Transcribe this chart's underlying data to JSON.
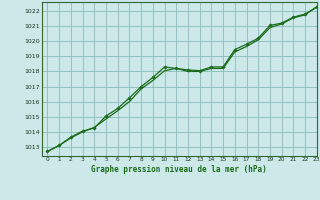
{
  "title": "Graphe pression niveau de la mer (hPa)",
  "bg_color": "#cce8e8",
  "grid_color": "#88bbbb",
  "line_color": "#1a6b1a",
  "marker_color": "#1a6b1a",
  "spine_color": "#336633",
  "xlim": [
    -0.5,
    23
  ],
  "ylim": [
    1012.4,
    1022.6
  ],
  "xticks": [
    0,
    1,
    2,
    3,
    4,
    5,
    6,
    7,
    8,
    9,
    10,
    11,
    12,
    13,
    14,
    15,
    16,
    17,
    18,
    19,
    20,
    21,
    22,
    23
  ],
  "yticks": [
    1013,
    1014,
    1015,
    1016,
    1017,
    1018,
    1019,
    1020,
    1021,
    1022
  ],
  "series1_x": [
    0,
    1,
    2,
    3,
    4,
    5,
    6,
    7,
    8,
    9,
    10,
    11,
    12,
    13,
    14,
    15,
    16,
    17,
    18,
    19,
    20,
    21,
    22,
    23
  ],
  "series1_y": [
    1012.7,
    1013.1,
    1013.6,
    1014.0,
    1014.3,
    1014.85,
    1015.4,
    1016.0,
    1016.85,
    1017.4,
    1018.05,
    1018.2,
    1018.0,
    1018.0,
    1018.2,
    1018.2,
    1019.3,
    1019.65,
    1020.1,
    1020.9,
    1021.15,
    1021.55,
    1021.75,
    1022.3
  ],
  "series2_x": [
    0,
    1,
    2,
    3,
    4,
    5,
    6,
    7,
    8,
    9,
    10,
    11,
    12,
    13,
    14,
    15,
    16,
    17,
    18,
    19,
    20,
    21,
    22,
    23
  ],
  "series2_y": [
    1012.7,
    1013.1,
    1013.65,
    1014.05,
    1014.25,
    1015.05,
    1015.55,
    1016.25,
    1017.0,
    1017.6,
    1018.3,
    1018.2,
    1018.1,
    1018.05,
    1018.3,
    1018.3,
    1019.45,
    1019.8,
    1020.2,
    1021.05,
    1021.2,
    1021.6,
    1021.8,
    1022.25
  ]
}
